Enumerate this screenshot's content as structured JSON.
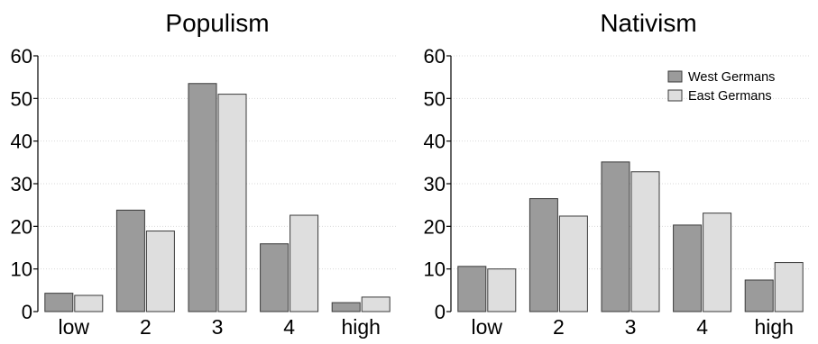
{
  "colors": {
    "west": "#9b9b9b",
    "east": "#dedede"
  },
  "chart_data": [
    {
      "type": "bar",
      "title": "Populism",
      "categories": [
        "low",
        "2",
        "3",
        "4",
        "high"
      ],
      "series": [
        {
          "name": "West Germans",
          "values": [
            4.3,
            23.8,
            53.5,
            15.9,
            2.1
          ]
        },
        {
          "name": "East Germans",
          "values": [
            3.8,
            18.9,
            51.0,
            22.6,
            3.4
          ]
        }
      ],
      "yticks": [
        0,
        10,
        20,
        30,
        40,
        50,
        60
      ],
      "ylim": [
        0,
        60
      ],
      "grid": true,
      "legend": false
    },
    {
      "type": "bar",
      "title": "Nativism",
      "categories": [
        "low",
        "2",
        "3",
        "4",
        "high"
      ],
      "series": [
        {
          "name": "West Germans",
          "values": [
            10.6,
            26.5,
            35.1,
            20.3,
            7.4
          ]
        },
        {
          "name": "East Germans",
          "values": [
            10.0,
            22.4,
            32.8,
            23.1,
            11.5
          ]
        }
      ],
      "yticks": [
        0,
        10,
        20,
        30,
        40,
        50,
        60
      ],
      "ylim": [
        0,
        60
      ],
      "grid": true,
      "legend": true,
      "legend_position": "top-right"
    }
  ]
}
